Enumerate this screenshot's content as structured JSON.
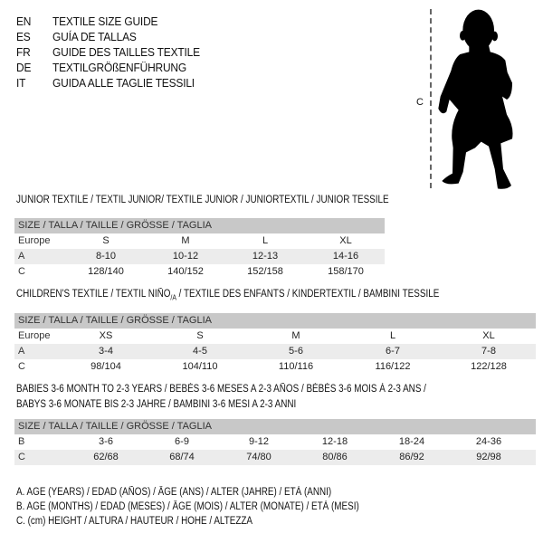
{
  "header": {
    "languages": [
      {
        "code": "EN",
        "title": "TEXTILE SIZE GUIDE"
      },
      {
        "code": "ES",
        "title": "GUÍA DE TALLAS"
      },
      {
        "code": "FR",
        "title": "GUIDE DES TAILLES TEXTILE"
      },
      {
        "code": "DE",
        "title": "TEXTILGRÖßENFÜHRUNG"
      },
      {
        "code": "IT",
        "title": "GUIDA ALLE TAGLIE TESSILI"
      }
    ]
  },
  "figure": {
    "measure_label": "C"
  },
  "junior": {
    "heading": "JUNIOR TEXTILE / TEXTIL JUNIOR/ TEXTILE JUNIOR / JUNIORTEXTIL / JUNIOR TESSILE",
    "size_header": "SIZE / TALLA / TAILLE / GRÖSSE / TAGLIA",
    "rows": [
      {
        "label": "Europe",
        "values": [
          "S",
          "M",
          "L",
          "XL"
        ]
      },
      {
        "label": "A",
        "values": [
          "8-10",
          "10-12",
          "12-13",
          "14-16"
        ]
      },
      {
        "label": "C",
        "values": [
          "128/140",
          "140/152",
          "152/158",
          "158/170"
        ]
      }
    ]
  },
  "children": {
    "heading_main": "CHILDREN'S TEXTILE / TEXTIL NIÑO",
    "heading_sub": "/A",
    "heading_rest": " / TEXTILE DES ENFANTS / KINDERTEXTIL / BAMBINI TESSILE",
    "size_header": "SIZE / TALLA / TAILLE / GRÖSSE / TAGLIA",
    "rows": [
      {
        "label": "Europe",
        "values": [
          "XS",
          "S",
          "M",
          "L",
          "XL"
        ]
      },
      {
        "label": "A",
        "values": [
          "3-4",
          "4-5",
          "5-6",
          "6-7",
          "7-8"
        ]
      },
      {
        "label": "C",
        "values": [
          "98/104",
          "104/110",
          "110/116",
          "116/122",
          "122/128"
        ]
      }
    ]
  },
  "babies": {
    "heading_line1": "BABIES 3-6 MONTH TO 2-3 YEARS / BEBÉS 3-6 MESES A 2-3 AÑOS / BÉBÉS 3-6 MOIS À 2-3 ANS /",
    "heading_line2": "BABYS 3-6 MONATE BIS 2-3 JAHRE / BAMBINI 3-6 MESI A 2-3 ANNI",
    "size_header": "SIZE / TALLA / TAILLE / GRÖSSE / TAGLIA",
    "rows": [
      {
        "label": "B",
        "values": [
          "3-6",
          "6-9",
          "9-12",
          "12-18",
          "18-24",
          "24-36"
        ]
      },
      {
        "label": "C",
        "values": [
          "62/68",
          "68/74",
          "74/80",
          "80/86",
          "86/92",
          "92/98"
        ]
      }
    ]
  },
  "legend": [
    "A. AGE (YEARS) / EDAD (AÑOS) / ÂGE (ANS) / ALTER (JAHRE) / ETÀ (ANNI)",
    "B. AGE (MONTHS) / EDAD (MESES) / ÂGE (MOIS) / ALTER (MONATE) / ETÀ (MESI)",
    "C. (cm) HEIGHT / ALTURA / HAUTEUR / HÖHE / ALTEZZA"
  ]
}
